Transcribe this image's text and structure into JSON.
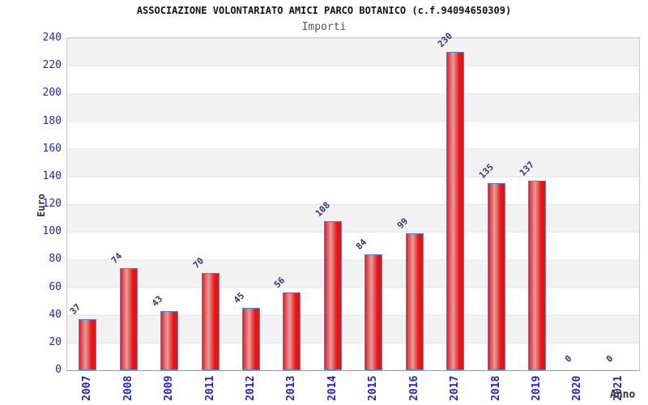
{
  "header": {
    "title": "ASSOCIAZIONE VOLONTARIATO AMICI PARCO BOTANICO (c.f.94094650309)",
    "subtitle": "Importi"
  },
  "chart_data": {
    "type": "bar",
    "title": "ASSOCIAZIONE VOLONTARIATO AMICI PARCO BOTANICO (c.f.94094650309)",
    "subtitle": "Importi",
    "xlabel": "Anno",
    "ylabel": "Euro",
    "categories": [
      "2007",
      "2008",
      "2009",
      "2011",
      "2012",
      "2013",
      "2014",
      "2015",
      "2016",
      "2017",
      "2018",
      "2019",
      "2020",
      "2021"
    ],
    "values": [
      37,
      74,
      43,
      70,
      45,
      56,
      108,
      84,
      99,
      230,
      135,
      137,
      0,
      0
    ],
    "ylim": [
      0,
      240
    ],
    "ytick_step": 20,
    "grid": "horizontal-alternating-bands",
    "legend": "none",
    "colors": {
      "bar_fill": "#ec1212",
      "bar_highlight": "#dfa0a0",
      "bar_border": "#4a86d8",
      "tick_label": "#2222cc",
      "value_label": "#333388",
      "band_gray": "#f2f2f2",
      "band_white": "#ffffff",
      "axis_text": "#333333",
      "title_text": "#111111",
      "subtitle_text": "#555555"
    }
  }
}
